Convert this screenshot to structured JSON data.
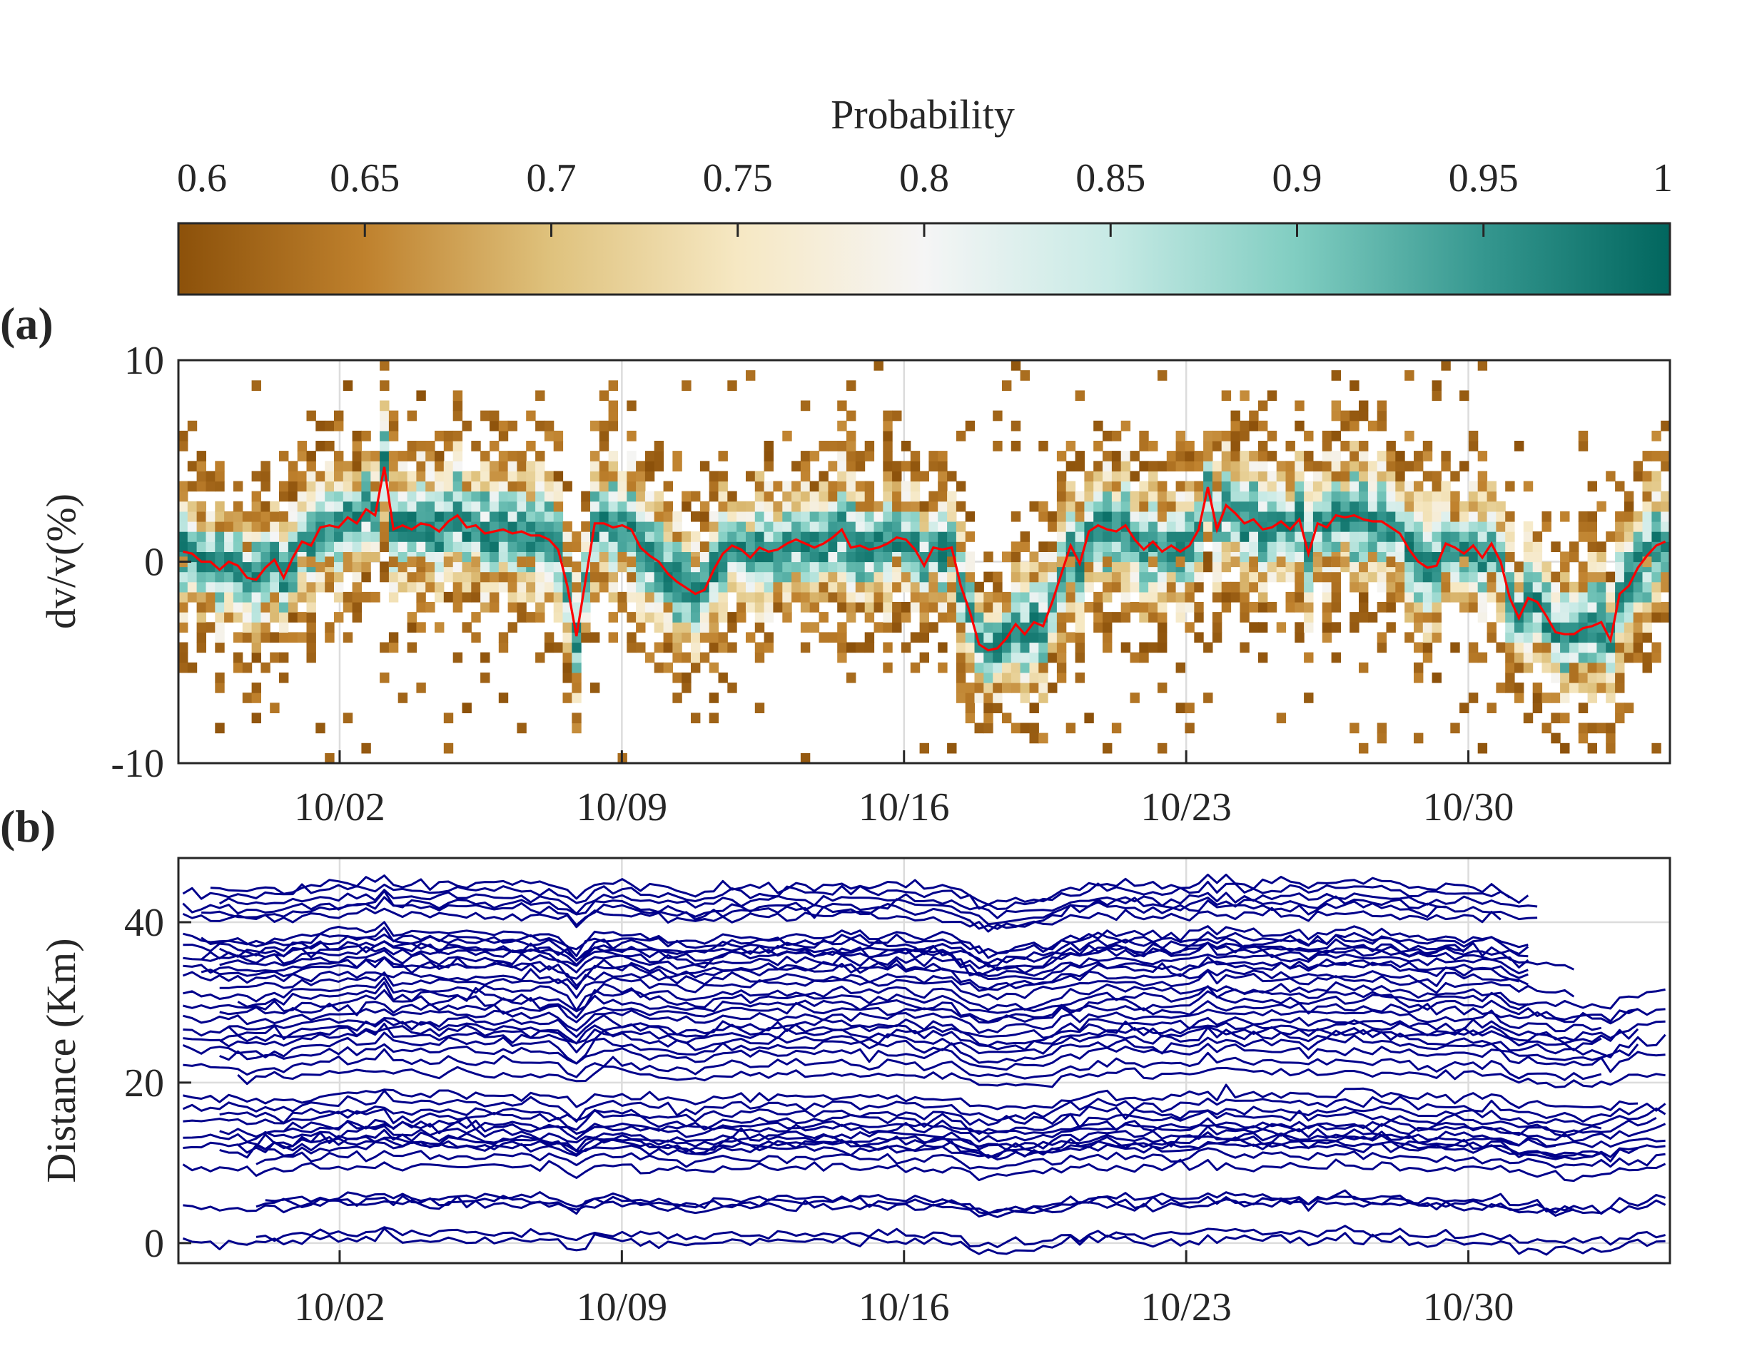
{
  "chart_data": [
    {
      "type": "colorbar",
      "title": "Probability",
      "range": [
        0.6,
        1
      ],
      "tick_labels": [
        "0.6",
        "0.65",
        "0.7",
        "0.75",
        "0.8",
        "0.85",
        "0.9",
        "0.95",
        "1"
      ],
      "colormap": [
        "#8c510a",
        "#bf812d",
        "#dfc27d",
        "#f6e8c3",
        "#f5f5f5",
        "#c7eae5",
        "#80cdc1",
        "#35978f",
        "#01665e"
      ]
    },
    {
      "type": "heatmap",
      "panel_label": "(a)",
      "ylabel": "dv/v(%)",
      "ylim": [
        -10,
        10
      ],
      "y_ticks": [
        "10",
        "0",
        "-10"
      ],
      "x_range_days": [
        0,
        37
      ],
      "x_ticks": [
        {
          "day": 4,
          "label": "10/02"
        },
        {
          "day": 11,
          "label": "10/09"
        },
        {
          "day": 18,
          "label": "10/16"
        },
        {
          "day": 25,
          "label": "10/23"
        },
        {
          "day": 32,
          "label": "10/30"
        }
      ],
      "grid": true,
      "median_color": "#ff0000",
      "median_series_dvv": [
        0.5,
        0.4,
        0.0,
        0.0,
        -0.4,
        0.0,
        -0.2,
        -0.8,
        -0.9,
        -0.3,
        0.1,
        -0.8,
        0.2,
        1.0,
        0.8,
        1.7,
        1.8,
        1.7,
        2.2,
        1.9,
        2.6,
        2.3,
        4.7,
        1.6,
        1.8,
        1.6,
        1.9,
        1.8,
        1.5,
        2.0,
        2.3,
        1.7,
        1.8,
        1.4,
        1.5,
        1.6,
        1.4,
        1.5,
        1.3,
        1.3,
        1.1,
        0.6,
        -1.2,
        -3.7,
        -0.9,
        1.9,
        1.9,
        1.7,
        1.8,
        1.6,
        0.7,
        0.3,
        0.0,
        -0.6,
        -1.0,
        -1.3,
        -1.6,
        -1.4,
        -0.4,
        0.4,
        0.8,
        0.6,
        0.2,
        0.7,
        0.5,
        0.6,
        0.9,
        1.1,
        0.9,
        0.7,
        0.9,
        1.2,
        1.6,
        0.7,
        0.8,
        0.6,
        0.7,
        0.9,
        1.2,
        1.1,
        0.6,
        -0.2,
        0.7,
        0.6,
        0.7,
        -1.2,
        -2.5,
        -4.1,
        -4.4,
        -4.3,
        -3.8,
        -3.1,
        -3.6,
        -3.0,
        -3.2,
        -2.0,
        -0.6,
        0.8,
        -0.1,
        1.5,
        1.8,
        1.6,
        1.5,
        1.8,
        1.1,
        0.6,
        1.0,
        0.5,
        0.8,
        0.5,
        0.8,
        1.6,
        3.7,
        1.6,
        2.8,
        2.4,
        1.9,
        2.1,
        1.6,
        1.7,
        2.0,
        1.6,
        2.1,
        0.4,
        1.9,
        1.7,
        2.3,
        2.2,
        2.3,
        2.1,
        2.0,
        2.0,
        1.7,
        1.4,
        0.6,
        0.0,
        -0.3,
        -0.2,
        0.9,
        0.7,
        0.4,
        0.8,
        0.2,
        0.9,
        0.0,
        -1.8,
        -2.8,
        -1.8,
        -2.0,
        -2.7,
        -3.5,
        -3.6,
        -3.6,
        -3.3,
        -3.2,
        -3.0,
        -3.9,
        -1.6,
        -1.2,
        -0.3,
        0.3,
        0.8,
        1.0
      ]
    },
    {
      "type": "line",
      "panel_label": "(b)",
      "ylabel": "Distance (Km)",
      "ylim": [
        -2.5,
        48
      ],
      "y_ticks": [
        "40",
        "20",
        "0"
      ],
      "x_range_days": [
        0,
        37
      ],
      "x_ticks": [
        {
          "day": 4,
          "label": "10/02"
        },
        {
          "day": 11,
          "label": "10/09"
        },
        {
          "day": 18,
          "label": "10/16"
        },
        {
          "day": 25,
          "label": "10/23"
        },
        {
          "day": 32,
          "label": "10/30"
        }
      ],
      "grid": true,
      "line_color": "#00008b",
      "series_offset_km": [
        0,
        0.9,
        4.5,
        4.9,
        5.3,
        9.2,
        10.5,
        11.6,
        12.0,
        12.3,
        12.8,
        13.2,
        14.0,
        14.5,
        15.2,
        16.0,
        16.9,
        18.0,
        20.8,
        22.0,
        23.4,
        24.3,
        25.1,
        25.8,
        26.4,
        27.0,
        28.0,
        28.8,
        29.5,
        30.3,
        31.0,
        32.2,
        33.0,
        33.7,
        34.2,
        34.9,
        35.6,
        36.0,
        36.4,
        36.8,
        37.5,
        38.0,
        40.5,
        41.2,
        41.8,
        42.5,
        43.5,
        44.2
      ],
      "series_start_day": [
        0,
        2,
        0,
        2,
        2.2,
        0,
        2,
        1,
        0,
        1.5,
        2,
        0,
        1,
        2.5,
        0,
        1,
        0,
        0,
        1.5,
        0,
        1,
        0,
        0,
        1,
        0,
        1.2,
        0,
        1,
        0,
        1.5,
        0,
        1,
        0,
        0.5,
        0,
        1,
        0,
        0.5,
        1,
        0,
        0.5,
        0,
        0,
        0.5,
        0,
        1,
        0,
        0.8
      ],
      "series_end_day": [
        37,
        37,
        37,
        34.5,
        37,
        37,
        37,
        36,
        37,
        35,
        37,
        34,
        37,
        35,
        36.5,
        37,
        37,
        36,
        37,
        35,
        37,
        36,
        37,
        35,
        36,
        37,
        35,
        37,
        36,
        33.3,
        37,
        34.3,
        33.3,
        33.1,
        33.3,
        33.2,
        33.3,
        34.5,
        33.3,
        31.7,
        33.3,
        33.3,
        32.5,
        33.4,
        31.2,
        33.5,
        33.3,
        32.8
      ]
    }
  ]
}
